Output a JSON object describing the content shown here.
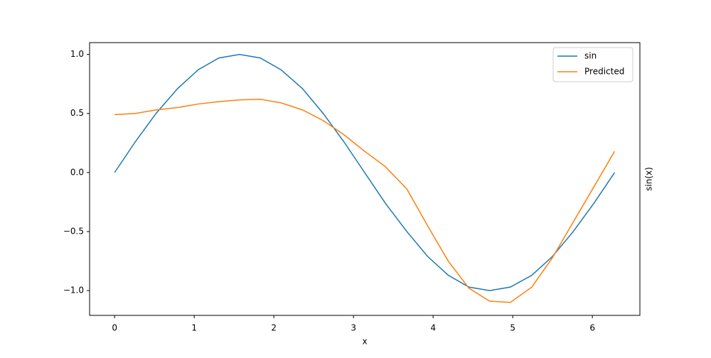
{
  "chart_data": {
    "type": "line",
    "xlabel": "x",
    "ylabel": "sin(x)",
    "x": [
      0,
      0.26,
      0.52,
      0.79,
      1.05,
      1.31,
      1.57,
      1.83,
      2.09,
      2.36,
      2.62,
      2.88,
      3.14,
      3.4,
      3.67,
      3.93,
      4.19,
      4.45,
      4.71,
      4.97,
      5.24,
      5.5,
      5.76,
      6.02,
      6.28
    ],
    "series": [
      {
        "name": "sin",
        "color": "#1f77b4",
        "values": [
          0,
          0.26,
          0.5,
          0.71,
          0.87,
          0.97,
          1,
          0.97,
          0.87,
          0.71,
          0.5,
          0.26,
          0,
          -0.26,
          -0.5,
          -0.71,
          -0.87,
          -0.97,
          -1,
          -0.97,
          -0.87,
          -0.71,
          -0.5,
          -0.26,
          0
        ]
      },
      {
        "name": "Predicted",
        "color": "#ff7f0e",
        "values": [
          0.49,
          0.5,
          0.53,
          0.55,
          0.58,
          0.6,
          0.615,
          0.62,
          0.59,
          0.53,
          0.44,
          0.32,
          0.18,
          0.05,
          -0.14,
          -0.45,
          -0.75,
          -0.98,
          -1.09,
          -1.1,
          -0.97,
          -0.72,
          -0.42,
          -0.12,
          0.18
        ]
      }
    ],
    "xlim": [
      -0.314,
      6.597
    ],
    "xticks": [
      0,
      1,
      2,
      3,
      4,
      5,
      6
    ],
    "ylim": [
      -1.21,
      1.1
    ],
    "yticks": [
      {
        "value": -1.0,
        "label": "−1.0"
      },
      {
        "value": -0.5,
        "label": "−0.5"
      },
      {
        "value": 0.0,
        "label": "0.0"
      },
      {
        "value": 0.5,
        "label": "0.5"
      },
      {
        "value": 1.0,
        "label": "1.0"
      }
    ],
    "legend": "upper right"
  }
}
